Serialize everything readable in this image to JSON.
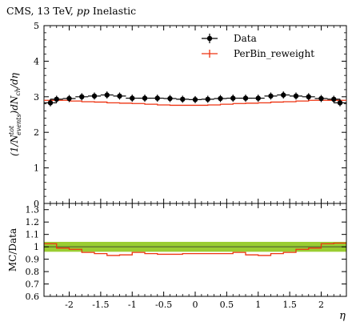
{
  "chart_data": {
    "type": "line",
    "title_prefix": "CMS, 13 TeV, ",
    "title_italic": "pp",
    "title_suffix": " Inelastic",
    "ylabel_main": "(1/N",
    "ylabel_sup": "tot",
    "ylabel_sub": "events",
    "ylabel_rest": ")dN",
    "ylabel_sub2": "ch",
    "ylabel_end": "/dη",
    "ylabel_ratio": "MC/Data",
    "xlabel": "η",
    "main": {
      "ylim": [
        0,
        5
      ],
      "yticks": [
        "0",
        "1",
        "2",
        "3",
        "4",
        "5"
      ],
      "ytick_values": [
        0,
        1,
        2,
        3,
        4,
        5
      ]
    },
    "ratio": {
      "ylim": [
        0.6,
        1.35
      ],
      "yticks": [
        "0.6",
        "0.7",
        "0.8",
        "0.9",
        "1",
        "1.1",
        "1.2",
        "1.3"
      ],
      "ytick_values": [
        0.6,
        0.7,
        0.8,
        0.9,
        1.0,
        1.1,
        1.2,
        1.3
      ],
      "band_low": 0.96,
      "band_high": 1.04,
      "band_color": "#9acd32",
      "reference_color": "#556b2f"
    },
    "xlim": [
      -2.4,
      2.4
    ],
    "xticks": [
      "-2",
      "-1.5",
      "-1",
      "-0.5",
      "0",
      "0.5",
      "1",
      "1.5",
      "2"
    ],
    "xtick_values": [
      -2,
      -1.5,
      -1,
      -0.5,
      0,
      0.5,
      1,
      1.5,
      2
    ],
    "bin_edges": [
      -2.4,
      -2.2,
      -2.0,
      -1.8,
      -1.6,
      -1.4,
      -1.2,
      -1.0,
      -0.8,
      -0.6,
      -0.4,
      -0.2,
      0.0,
      0.2,
      0.4,
      0.6,
      0.8,
      1.0,
      1.2,
      1.4,
      1.6,
      1.8,
      2.0,
      2.2,
      2.4
    ],
    "series": [
      {
        "name": "Data",
        "color": "#000000",
        "values": [
          2.83,
          2.93,
          2.95,
          3.0,
          3.02,
          3.05,
          3.02,
          2.96,
          2.96,
          2.96,
          2.95,
          2.93,
          2.92,
          2.93,
          2.95,
          2.96,
          2.96,
          2.96,
          3.02,
          3.05,
          3.02,
          3.0,
          2.95,
          2.93,
          2.83
        ],
        "errors": [
          0.1,
          0.1,
          0.1,
          0.1,
          0.1,
          0.1,
          0.1,
          0.1,
          0.1,
          0.1,
          0.1,
          0.1,
          0.1,
          0.1,
          0.1,
          0.1,
          0.1,
          0.1,
          0.1,
          0.1,
          0.1,
          0.1,
          0.1,
          0.1,
          0.1
        ]
      },
      {
        "name": "PerBin_reweight",
        "color": "#ee3311",
        "values": [
          2.9,
          2.9,
          2.88,
          2.86,
          2.85,
          2.83,
          2.82,
          2.81,
          2.79,
          2.77,
          2.76,
          2.76,
          2.76,
          2.77,
          2.79,
          2.81,
          2.82,
          2.83,
          2.85,
          2.86,
          2.88,
          2.9,
          2.9,
          2.9
        ],
        "ratio": [
          1.025,
          0.99,
          0.98,
          0.955,
          0.945,
          0.93,
          0.935,
          0.955,
          0.945,
          0.94,
          0.94,
          0.945,
          0.945,
          0.945,
          0.945,
          0.955,
          0.935,
          0.93,
          0.945,
          0.955,
          0.98,
          0.99,
          1.025,
          1.03
        ]
      }
    ],
    "legend_position": "top-right"
  }
}
